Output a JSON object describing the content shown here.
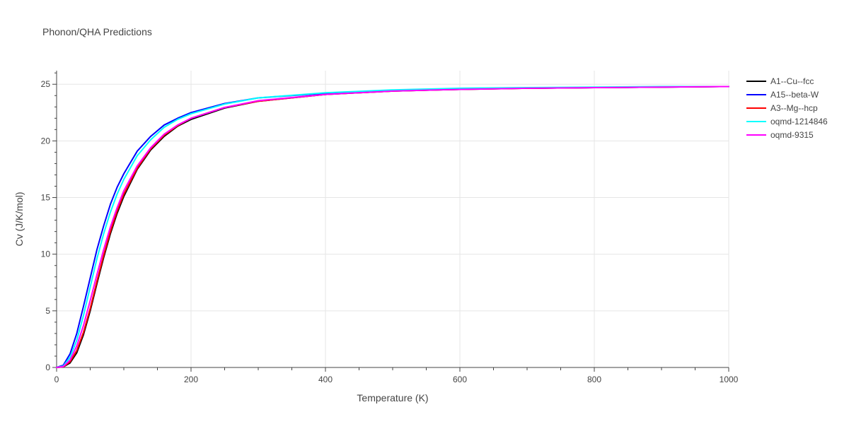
{
  "chart_data": {
    "type": "line",
    "title": "Phonon/QHA Predictions",
    "xlabel": "Temperature (K)",
    "ylabel": "Cv (J/K/mol)",
    "xlim": [
      0,
      1000
    ],
    "ylim": [
      0,
      26.2
    ],
    "xticks": [
      0,
      200,
      400,
      600,
      800,
      1000
    ],
    "yticks": [
      0,
      5,
      10,
      15,
      20,
      25
    ],
    "xtick_labels": [
      "0",
      "200",
      "400",
      "600",
      "800",
      "1000"
    ],
    "ytick_labels": [
      "0",
      "5",
      "10",
      "15",
      "20",
      "25"
    ],
    "grid": true,
    "legend_position": "right",
    "series": [
      {
        "name": "A1--Cu--fcc",
        "color": "#000000",
        "x": [
          0,
          10,
          20,
          30,
          40,
          50,
          60,
          70,
          80,
          90,
          100,
          120,
          140,
          160,
          180,
          200,
          250,
          300,
          400,
          500,
          600,
          700,
          800,
          900,
          1000
        ],
        "y": [
          0,
          0.05,
          0.4,
          1.3,
          2.9,
          5.0,
          7.4,
          9.7,
          11.8,
          13.6,
          15.1,
          17.5,
          19.2,
          20.4,
          21.3,
          21.9,
          22.9,
          23.5,
          24.1,
          24.4,
          24.55,
          24.65,
          24.7,
          24.75,
          24.8
        ]
      },
      {
        "name": "A15--beta-W",
        "color": "#0000ff",
        "x": [
          0,
          10,
          20,
          30,
          40,
          50,
          60,
          70,
          80,
          90,
          100,
          120,
          140,
          160,
          180,
          200,
          250,
          300,
          400,
          500,
          600,
          700,
          800,
          900,
          1000
        ],
        "y": [
          0,
          0.2,
          1.2,
          3.0,
          5.4,
          7.9,
          10.4,
          12.5,
          14.4,
          15.9,
          17.1,
          19.1,
          20.4,
          21.4,
          22.0,
          22.5,
          23.3,
          23.8,
          24.2,
          24.45,
          24.6,
          24.65,
          24.7,
          24.75,
          24.8
        ]
      },
      {
        "name": "A3--Mg--hcp",
        "color": "#ff0000",
        "x": [
          0,
          10,
          20,
          30,
          40,
          50,
          60,
          70,
          80,
          90,
          100,
          120,
          140,
          160,
          180,
          200,
          250,
          300,
          400,
          500,
          600,
          700,
          800,
          900,
          1000
        ],
        "y": [
          0,
          0.06,
          0.5,
          1.5,
          3.1,
          5.2,
          7.6,
          9.9,
          12.0,
          13.8,
          15.3,
          17.6,
          19.3,
          20.5,
          21.35,
          22.0,
          22.95,
          23.5,
          24.1,
          24.4,
          24.55,
          24.65,
          24.7,
          24.75,
          24.8
        ]
      },
      {
        "name": "oqmd-1214846",
        "color": "#00ffff",
        "x": [
          0,
          10,
          20,
          30,
          40,
          50,
          60,
          70,
          80,
          90,
          100,
          120,
          140,
          160,
          180,
          200,
          250,
          300,
          400,
          500,
          600,
          700,
          800,
          900,
          1000
        ],
        "y": [
          0,
          0.12,
          0.9,
          2.4,
          4.6,
          7.1,
          9.6,
          11.8,
          13.7,
          15.3,
          16.6,
          18.7,
          20.1,
          21.2,
          21.9,
          22.4,
          23.25,
          23.8,
          24.25,
          24.5,
          24.65,
          24.7,
          24.75,
          24.8,
          24.8
        ]
      },
      {
        "name": "oqmd-9315",
        "color": "#ff00ff",
        "x": [
          0,
          10,
          20,
          30,
          40,
          50,
          60,
          70,
          80,
          90,
          100,
          120,
          140,
          160,
          180,
          200,
          250,
          300,
          400,
          500,
          600,
          700,
          800,
          900,
          1000
        ],
        "y": [
          0,
          0.08,
          0.65,
          1.9,
          3.7,
          5.9,
          8.2,
          10.4,
          12.4,
          14.1,
          15.6,
          17.8,
          19.4,
          20.6,
          21.4,
          22.0,
          22.95,
          23.55,
          24.1,
          24.4,
          24.55,
          24.65,
          24.7,
          24.75,
          24.8
        ]
      }
    ]
  }
}
